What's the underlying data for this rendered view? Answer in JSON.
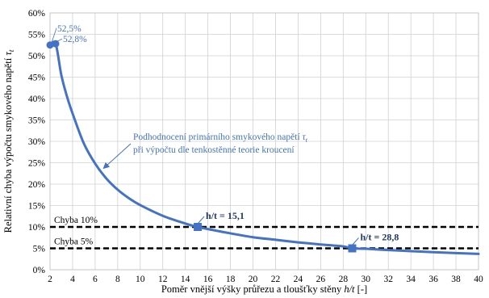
{
  "chart_data": {
    "type": "line",
    "xlabel_prefix": "Poměr vnější výšky průřezu a tloušťky stěny ",
    "xlabel_var": "h/t",
    "xlabel_suffix": " [-]",
    "ylabel_main": "Relativní chyba výpočtu smykového napětí ",
    "ylabel_sym": "τ",
    "ylabel_sub": "t",
    "xlim": [
      2,
      40
    ],
    "ylim": [
      0,
      60
    ],
    "x_ticks": [
      2,
      4,
      6,
      8,
      10,
      12,
      14,
      16,
      18,
      20,
      22,
      24,
      26,
      28,
      30,
      32,
      34,
      36,
      38,
      40
    ],
    "y_ticks": [
      0,
      5,
      10,
      15,
      20,
      25,
      30,
      35,
      40,
      45,
      50,
      55,
      60
    ],
    "y_tick_suffix": "%",
    "grid": true,
    "series": [
      {
        "color": "#4472c4",
        "x": [
          2,
          2.5,
          3,
          3.5,
          4,
          5,
          6,
          7,
          8,
          9,
          10,
          12,
          14,
          15.1,
          16,
          18,
          20,
          22,
          24,
          26,
          28,
          28.8,
          30,
          32,
          34,
          36,
          38,
          40
        ],
        "y": [
          52.5,
          52.8,
          45.5,
          40.5,
          36.5,
          29.5,
          24.8,
          21.3,
          18.7,
          16.7,
          15.1,
          12.6,
          10.8,
          10.0,
          9.5,
          8.5,
          7.6,
          7.0,
          6.4,
          5.9,
          5.45,
          5.0,
          4.9,
          4.6,
          4.35,
          4.1,
          3.9,
          3.7
        ]
      }
    ],
    "reference_lines": [
      {
        "label": "Chyba 10%",
        "y": 10,
        "color": "#000000"
      },
      {
        "label": "Chyba 5%",
        "y": 5,
        "color": "#000000"
      }
    ],
    "markers": [
      {
        "label": "h/t = 15,1",
        "x": 15.1,
        "y": 10,
        "shape": "square"
      },
      {
        "label": "h/t = 28,8",
        "x": 28.8,
        "y": 5,
        "shape": "square"
      }
    ],
    "start_points": [
      {
        "label": "52,5%",
        "x": 2,
        "y": 52.5
      },
      {
        "label": "52,8%",
        "x": 2.5,
        "y": 52.8
      }
    ],
    "annotation": {
      "line1_text": "Podhodnocení primárního smykového napětí ",
      "line1_sym": "τ",
      "line1_sub": "t",
      "line2_text": "při výpočtu dle tenkostěnné teorie kroucení",
      "arrow_target": {
        "x": 6.6,
        "y": 23.5
      }
    }
  }
}
